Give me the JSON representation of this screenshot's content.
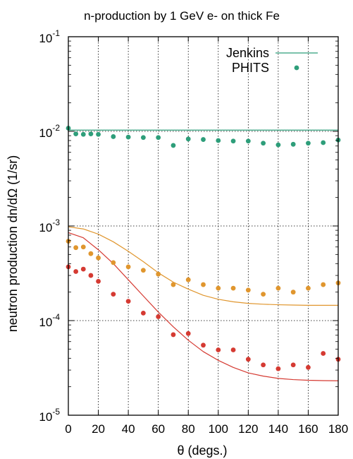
{
  "chart_data": {
    "type": "scatter",
    "title": "n-production by 1 GeV e- on thick Fe",
    "xlabel": "θ (degs.)",
    "ylabel": "neutron production dn/dΩ (1/sr)",
    "xlim": [
      0,
      180
    ],
    "ylim": [
      1e-05,
      0.1
    ],
    "y_scale": "log",
    "grid": true,
    "legend_position": "top-right",
    "x_ticks": [
      0,
      20,
      40,
      60,
      80,
      100,
      120,
      140,
      160,
      180
    ],
    "y_ticks": [
      {
        "value": 1e-05,
        "base": "10",
        "exp": "-5"
      },
      {
        "value": 0.0001,
        "base": "10",
        "exp": "-4"
      },
      {
        "value": 0.001,
        "base": "10",
        "exp": "-3"
      },
      {
        "value": 0.01,
        "base": "10",
        "exp": "-2"
      },
      {
        "value": 0.1,
        "base": "10",
        "exp": "-1"
      }
    ],
    "legend": [
      {
        "label": "Jenkins",
        "kind": "line",
        "color": "#2e9e7a"
      },
      {
        "label": "PHITS",
        "kind": "point",
        "color": "#2e9e7a"
      }
    ],
    "curves": [
      {
        "color": "#2e9e7a",
        "x": [
          0,
          180
        ],
        "y": [
          0.0103,
          0.0103
        ]
      },
      {
        "color": "#e0962e",
        "x": [
          0,
          10,
          20,
          30,
          40,
          50,
          60,
          70,
          80,
          90,
          100,
          110,
          120,
          130,
          140,
          150,
          160,
          170,
          180
        ],
        "y": [
          0.00098,
          0.00093,
          0.00082,
          0.00068,
          0.00054,
          0.00042,
          0.00032,
          0.000255,
          0.000215,
          0.000185,
          0.000168,
          0.000158,
          0.000152,
          0.000149,
          0.000147,
          0.000146,
          0.000145,
          0.000145,
          0.000145
        ]
      },
      {
        "color": "#d53a32",
        "x": [
          0,
          10,
          20,
          30,
          40,
          50,
          60,
          70,
          80,
          90,
          100,
          110,
          120,
          130,
          140,
          150,
          160,
          170,
          180
        ],
        "y": [
          0.00085,
          0.00075,
          0.00056,
          0.0004,
          0.00027,
          0.000182,
          0.000123,
          8.6e-05,
          6.2e-05,
          4.7e-05,
          3.8e-05,
          3.2e-05,
          2.8e-05,
          2.59e-05,
          2.45e-05,
          2.38e-05,
          2.34e-05,
          2.32e-05,
          2.31e-05
        ]
      }
    ],
    "series": [
      {
        "color": "#2e9e7a",
        "x": [
          0,
          5,
          10,
          15,
          20,
          30,
          40,
          50,
          60,
          70,
          80,
          90,
          100,
          110,
          120,
          130,
          140,
          150,
          160,
          170,
          180
        ],
        "y": [
          0.0108,
          0.0094,
          0.0093,
          0.0094,
          0.0093,
          0.0088,
          0.0087,
          0.0086,
          0.0086,
          0.0071,
          0.0083,
          0.0082,
          0.008,
          0.0079,
          0.0079,
          0.0075,
          0.0072,
          0.0073,
          0.0075,
          0.0076,
          0.0081
        ]
      },
      {
        "color": "#e0962e",
        "x": [
          0,
          5,
          10,
          15,
          20,
          30,
          40,
          50,
          60,
          70,
          80,
          90,
          100,
          110,
          120,
          130,
          140,
          150,
          160,
          170,
          180
        ],
        "y": [
          0.00069,
          0.00059,
          0.0006,
          0.00051,
          0.00046,
          0.00041,
          0.00037,
          0.00034,
          0.00031,
          0.00024,
          0.00027,
          0.00024,
          0.00022,
          0.00022,
          0.00021,
          0.00019,
          0.00022,
          0.0002,
          0.00022,
          0.00024,
          0.00025
        ]
      },
      {
        "color": "#d53a32",
        "x": [
          0,
          5,
          10,
          15,
          20,
          30,
          40,
          50,
          60,
          70,
          80,
          90,
          100,
          110,
          120,
          130,
          140,
          150,
          160,
          170,
          180
        ],
        "y": [
          0.00037,
          0.00033,
          0.00035,
          0.0003,
          0.00026,
          0.00019,
          0.00016,
          0.00012,
          0.00011,
          7.1e-05,
          7.3e-05,
          5.5e-05,
          4.9e-05,
          4.9e-05,
          3.9e-05,
          3.4e-05,
          3.1e-05,
          3.4e-05,
          3.2e-05,
          4.5e-05,
          3.9e-05
        ]
      }
    ]
  }
}
